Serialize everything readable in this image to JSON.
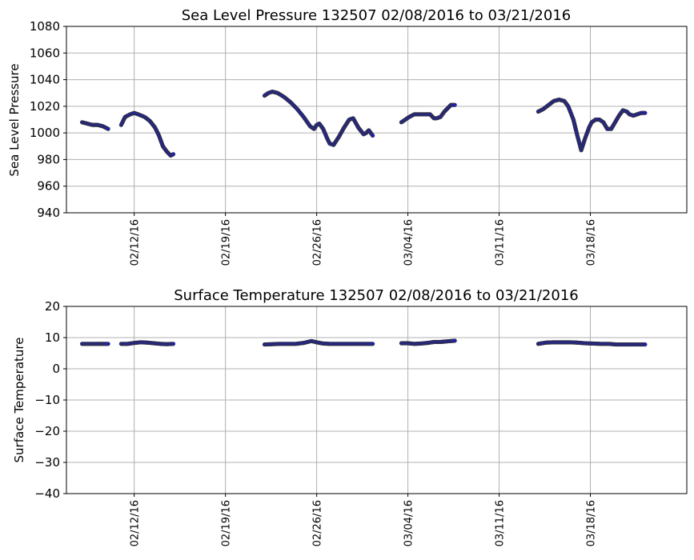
{
  "chart_data": [
    {
      "type": "scatter",
      "title": "Sea Level Pressure 132507  02/08/2016 to 03/21/2016",
      "xlabel": "",
      "ylabel": "Sea Level Pressure",
      "x_domain_days": [
        -1.2,
        46.4
      ],
      "x_domain_note": "days since 02/08/2016",
      "ylim": [
        940,
        1080
      ],
      "yticks": [
        940,
        960,
        980,
        1000,
        1020,
        1040,
        1060,
        1080
      ],
      "xticks": [
        {
          "day": 4,
          "label": "02/12/16"
        },
        {
          "day": 11,
          "label": "02/19/16"
        },
        {
          "day": 18,
          "label": "02/26/16"
        },
        {
          "day": 25,
          "label": "03/04/16"
        },
        {
          "day": 32,
          "label": "03/11/16"
        },
        {
          "day": 39,
          "label": "03/18/16"
        }
      ],
      "grid": true,
      "marker_color": "#1f1fbf",
      "marker_edge": "#333333",
      "segments": [
        {
          "name": "seg1",
          "x": [
            0,
            0.4,
            0.8,
            1.2,
            1.6,
            2.0
          ],
          "y": [
            1008,
            1007,
            1006,
            1006,
            1005,
            1003
          ]
        },
        {
          "name": "seg2",
          "x": [
            3.0,
            3.3,
            3.7,
            4.0,
            4.3,
            4.8,
            5.2,
            5.6,
            5.9,
            6.2,
            6.5,
            6.8,
            7.0
          ],
          "y": [
            1006,
            1012,
            1014,
            1015,
            1014,
            1012,
            1009,
            1004,
            998,
            990,
            986,
            983,
            984
          ]
        },
        {
          "name": "seg3",
          "x": [
            14.0,
            14.3,
            14.6,
            15.0,
            15.5,
            16.0,
            16.5,
            17.0,
            17.5,
            17.8,
            18.0,
            18.2,
            18.5,
            18.8,
            19.0,
            19.3,
            19.7,
            20.1,
            20.5,
            20.8,
            21.2,
            21.6,
            21.8,
            22.0,
            22.3
          ],
          "y": [
            1028,
            1030,
            1031,
            1030,
            1027,
            1023,
            1018,
            1012,
            1005,
            1003,
            1006,
            1007,
            1003,
            996,
            992,
            991,
            997,
            1004,
            1010,
            1011,
            1004,
            999,
            1000,
            1002,
            998
          ]
        },
        {
          "name": "seg4",
          "x": [
            24.5,
            24.8,
            25.1,
            25.5,
            25.9,
            26.3,
            26.7,
            27.0,
            27.2,
            27.5,
            27.8,
            28.1,
            28.3,
            28.6
          ],
          "y": [
            1008,
            1010,
            1012,
            1014,
            1014,
            1014,
            1014,
            1011,
            1011,
            1012,
            1016,
            1019,
            1021,
            1021
          ]
        },
        {
          "name": "seg5",
          "x": [
            35.0,
            35.4,
            35.8,
            36.2,
            36.6,
            37.0,
            37.3,
            37.7,
            38.0,
            38.3,
            38.6,
            38.9,
            39.1,
            39.4,
            39.7,
            40.0,
            40.3,
            40.6,
            40.9,
            41.2,
            41.5,
            41.8,
            42.0,
            42.3,
            42.6,
            42.9,
            43.2
          ],
          "y": [
            1016,
            1018,
            1021,
            1024,
            1025,
            1024,
            1020,
            1010,
            998,
            987,
            996,
            1004,
            1008,
            1010,
            1010,
            1008,
            1003,
            1003,
            1008,
            1013,
            1017,
            1016,
            1014,
            1013,
            1014,
            1015,
            1015
          ]
        }
      ]
    },
    {
      "type": "scatter",
      "title": "Surface Temperature 132507  02/08/2016 to 03/21/2016",
      "xlabel": "",
      "ylabel": "Surface Temperature",
      "x_domain_days": [
        -1.2,
        46.4
      ],
      "x_domain_note": "days since 02/08/2016",
      "ylim": [
        -40,
        20
      ],
      "yticks": [
        -40,
        -30,
        -20,
        -10,
        0,
        10,
        20
      ],
      "ytick_labels": [
        "−40",
        "−30",
        "−20",
        "−10",
        "0",
        "10",
        "20"
      ],
      "xticks": [
        {
          "day": 4,
          "label": "02/12/16"
        },
        {
          "day": 11,
          "label": "02/19/16"
        },
        {
          "day": 18,
          "label": "02/26/16"
        },
        {
          "day": 25,
          "label": "03/04/16"
        },
        {
          "day": 32,
          "label": "03/11/16"
        },
        {
          "day": 39,
          "label": "03/18/16"
        }
      ],
      "grid": true,
      "marker_color": "#1f1fbf",
      "marker_edge": "#333333",
      "segments": [
        {
          "name": "seg1",
          "x": [
            0,
            0.4,
            0.8,
            1.2,
            1.6,
            2.0
          ],
          "y": [
            8.0,
            8.0,
            8.0,
            8.0,
            8.0,
            8.0
          ]
        },
        {
          "name": "seg2",
          "x": [
            3.0,
            3.5,
            4.0,
            4.5,
            5.0,
            5.5,
            6.0,
            6.5,
            7.0
          ],
          "y": [
            8.0,
            8.0,
            8.3,
            8.5,
            8.4,
            8.2,
            8.0,
            7.9,
            8.0
          ]
        },
        {
          "name": "seg3",
          "x": [
            14.0,
            14.6,
            15.2,
            15.8,
            16.4,
            17.0,
            17.6,
            18.0,
            18.5,
            19.0,
            19.6,
            20.2,
            20.8,
            21.4,
            22.0,
            22.3
          ],
          "y": [
            7.8,
            7.9,
            8.0,
            8.0,
            8.0,
            8.3,
            8.9,
            8.5,
            8.1,
            8.0,
            8.0,
            8.0,
            8.0,
            8.0,
            8.0,
            8.0
          ]
        },
        {
          "name": "seg4",
          "x": [
            24.5,
            25.0,
            25.5,
            26.0,
            26.5,
            27.0,
            27.5,
            28.0,
            28.6
          ],
          "y": [
            8.2,
            8.2,
            8.0,
            8.1,
            8.3,
            8.6,
            8.6,
            8.8,
            9.0
          ]
        },
        {
          "name": "seg5",
          "x": [
            35.0,
            35.6,
            36.2,
            36.8,
            37.4,
            38.0,
            38.6,
            39.2,
            39.8,
            40.4,
            41.0,
            41.5,
            42.0,
            42.5,
            43.0,
            43.2
          ],
          "y": [
            8.0,
            8.4,
            8.5,
            8.5,
            8.5,
            8.4,
            8.2,
            8.1,
            8.0,
            8.0,
            7.8,
            7.8,
            7.8,
            7.8,
            7.8,
            7.8
          ]
        }
      ]
    }
  ]
}
